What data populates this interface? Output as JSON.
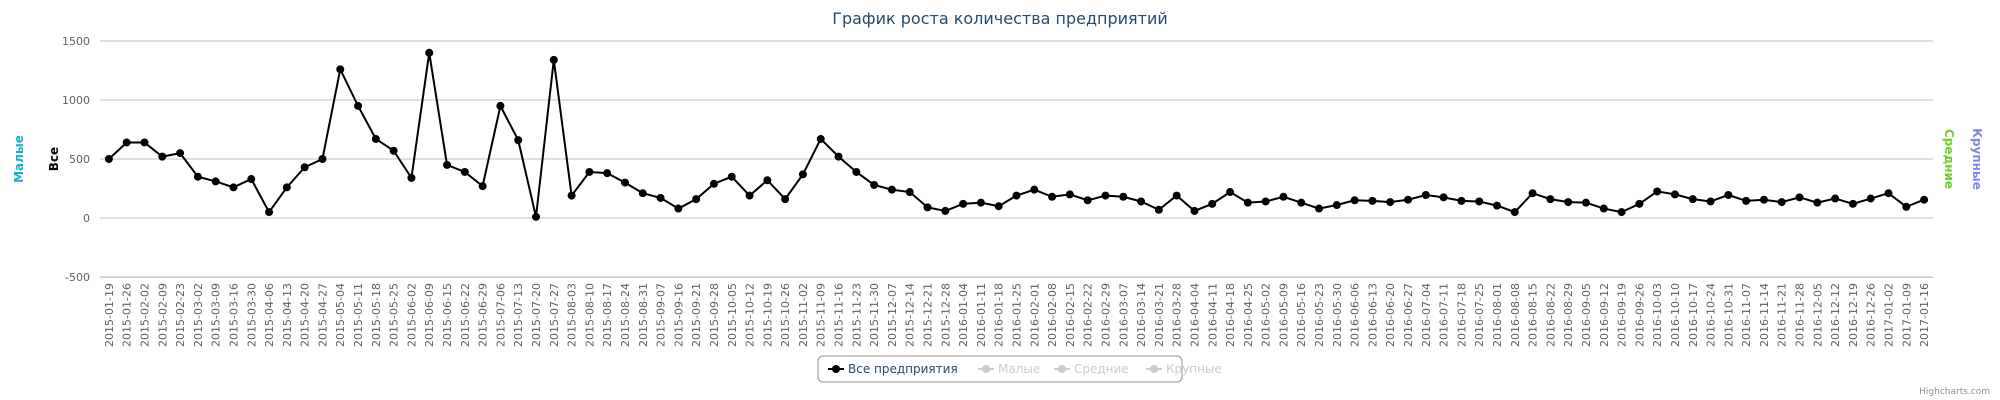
{
  "chart_data": {
    "type": "line",
    "title": "График роста количества предприятий",
    "ylabel": "Все",
    "other_axis_titles": [
      {
        "text": "Малые",
        "color": "#1aadce"
      },
      {
        "text": "Средние",
        "color": "#6ccf2c"
      },
      {
        "text": "Крупные",
        "color": "#8085e9"
      }
    ],
    "categories": [
      "2015-01-19",
      "2015-01-26",
      "2015-02-02",
      "2015-02-09",
      "2015-02-23",
      "2015-03-02",
      "2015-03-09",
      "2015-03-16",
      "2015-03-30",
      "2015-04-06",
      "2015-04-13",
      "2015-04-20",
      "2015-04-27",
      "2015-05-04",
      "2015-05-11",
      "2015-05-18",
      "2015-05-25",
      "2015-06-02",
      "2015-06-09",
      "2015-06-15",
      "2015-06-22",
      "2015-06-29",
      "2015-07-06",
      "2015-07-13",
      "2015-07-20",
      "2015-07-27",
      "2015-08-03",
      "2015-08-10",
      "2015-08-17",
      "2015-08-24",
      "2015-08-31",
      "2015-09-07",
      "2015-09-16",
      "2015-09-21",
      "2015-09-28",
      "2015-10-05",
      "2015-10-12",
      "2015-10-19",
      "2015-10-26",
      "2015-11-02",
      "2015-11-09",
      "2015-11-16",
      "2015-11-23",
      "2015-11-30",
      "2015-12-07",
      "2015-12-14",
      "2015-12-21",
      "2015-12-28",
      "2016-01-04",
      "2016-01-11",
      "2016-01-18",
      "2016-01-25",
      "2016-02-01",
      "2016-02-08",
      "2016-02-15",
      "2016-02-22",
      "2016-02-29",
      "2016-03-07",
      "2016-03-14",
      "2016-03-21",
      "2016-03-28",
      "2016-04-04",
      "2016-04-11",
      "2016-04-18",
      "2016-04-25",
      "2016-05-02",
      "2016-05-09",
      "2016-05-16",
      "2016-05-23",
      "2016-05-30",
      "2016-06-06",
      "2016-06-13",
      "2016-06-20",
      "2016-06-27",
      "2016-07-04",
      "2016-07-11",
      "2016-07-18",
      "2016-07-25",
      "2016-08-01",
      "2016-08-08",
      "2016-08-15",
      "2016-08-22",
      "2016-08-29",
      "2016-09-05",
      "2016-09-12",
      "2016-09-19",
      "2016-09-26",
      "2016-10-03",
      "2016-10-10",
      "2016-10-17",
      "2016-10-24",
      "2016-10-31",
      "2016-11-07",
      "2016-11-14",
      "2016-11-21",
      "2016-11-28",
      "2016-12-05",
      "2016-12-12",
      "2016-12-19",
      "2016-12-26",
      "2017-01-02",
      "2017-01-09",
      "2017-01-16"
    ],
    "series": [
      {
        "name": "Все предприятия",
        "color": "#000000",
        "visible": true,
        "values": [
          500,
          640,
          640,
          520,
          550,
          350,
          310,
          260,
          330,
          50,
          260,
          430,
          500,
          1260,
          950,
          670,
          570,
          340,
          1400,
          450,
          390,
          270,
          950,
          660,
          10,
          1340,
          190,
          390,
          380,
          300,
          210,
          170,
          80,
          160,
          290,
          350,
          190,
          320,
          160,
          370,
          670,
          520,
          390,
          280,
          240,
          220,
          90,
          60,
          120,
          130,
          100,
          190,
          240,
          180,
          200,
          150,
          190,
          180,
          140,
          70,
          190,
          60,
          120,
          220,
          130,
          140,
          180,
          130,
          80,
          110,
          150,
          145,
          135,
          155,
          195,
          175,
          145,
          140,
          105,
          50,
          210,
          160,
          135,
          130,
          80,
          50,
          120,
          225,
          200,
          160,
          140,
          195,
          145,
          155,
          135,
          175,
          130,
          165,
          120,
          165,
          210,
          95,
          155
        ]
      },
      {
        "name": "Малые",
        "color": "#cccccc",
        "visible": false
      },
      {
        "name": "Средние",
        "color": "#cccccc",
        "visible": false
      },
      {
        "name": "Крупные",
        "color": "#cccccc",
        "visible": false
      }
    ],
    "ylim": [
      -500,
      1500
    ],
    "yticks": [
      -500,
      0,
      500,
      1000,
      1500
    ],
    "grid": true,
    "legend": "bottom",
    "credit": "Highcharts.com"
  }
}
